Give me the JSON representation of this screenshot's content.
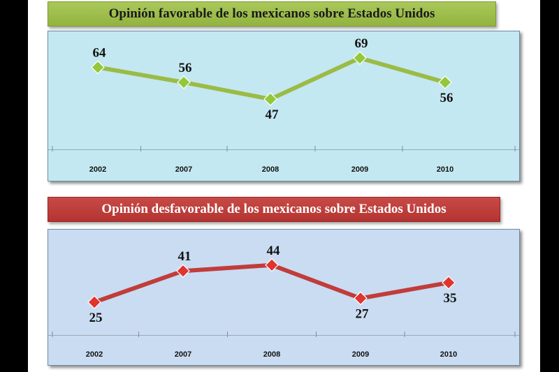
{
  "chart_data": [
    {
      "type": "line",
      "title": "Opinión favorable de los mexicanos sobre Estados Unidos",
      "categories": [
        "2002",
        "2007",
        "2008",
        "2009",
        "2010"
      ],
      "series": [
        {
          "values": [
            64,
            56,
            47,
            69,
            56
          ]
        }
      ],
      "ylim": [
        25,
        75
      ],
      "grid": false,
      "line_color": "#9bbb45",
      "marker_color": "#92c83a",
      "marker": "diamond",
      "background": "#c3e8f1"
    },
    {
      "type": "line",
      "title": "Opinión desfavorable de los mexicanos sobre Estados Unidos",
      "categories": [
        "2002",
        "2007",
        "2008",
        "2009",
        "2010"
      ],
      "series": [
        {
          "values": [
            25,
            41,
            44,
            27,
            35
          ]
        }
      ],
      "ylim": [
        10,
        55
      ],
      "grid": false,
      "line_color": "#c13c3a",
      "marker_color": "#e0342f",
      "marker": "diamond",
      "background": "#c9dcf2"
    }
  ]
}
